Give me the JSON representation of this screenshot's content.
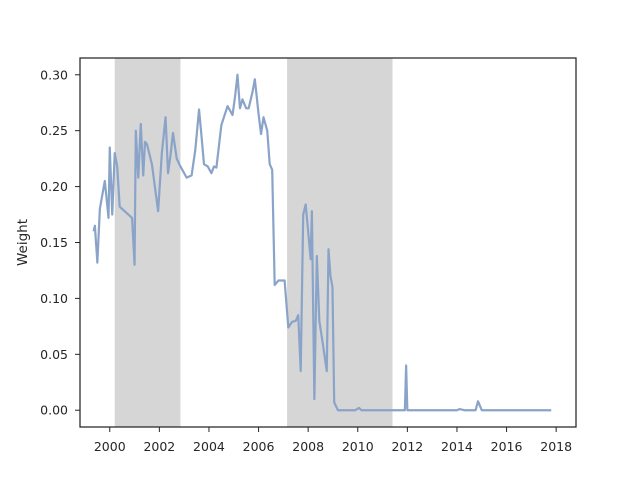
{
  "chart_data": {
    "type": "line",
    "title": "",
    "xlabel": "",
    "ylabel": "Weight",
    "xlim": [
      1998.8,
      2018.8
    ],
    "ylim": [
      -0.015,
      0.315
    ],
    "grid": false,
    "legend": "none",
    "x_ticks": [
      2000,
      2002,
      2004,
      2006,
      2008,
      2010,
      2012,
      2014,
      2016,
      2018
    ],
    "x_tick_labels": [
      "2000",
      "2002",
      "2004",
      "2006",
      "2008",
      "2010",
      "2012",
      "2014",
      "2016",
      "2018"
    ],
    "y_ticks": [
      0.0,
      0.05,
      0.1,
      0.15,
      0.2,
      0.25,
      0.3
    ],
    "y_tick_labels": [
      "0.00",
      "0.05",
      "0.10",
      "0.15",
      "0.20",
      "0.25",
      "0.30"
    ],
    "shaded_regions": [
      {
        "x": [
          2000.2,
          2002.85
        ],
        "color": "#d6d6d6"
      },
      {
        "x": [
          2007.15,
          2011.4
        ],
        "color": "#d6d6d6"
      }
    ],
    "series": [
      {
        "color": "#8aa3c9",
        "x": [
          1999.35,
          1999.4,
          1999.5,
          1999.6,
          1999.8,
          1999.95,
          2000.0,
          2000.1,
          2000.2,
          2000.3,
          2000.4,
          2000.6,
          2000.9,
          2001.0,
          2001.05,
          2001.15,
          2001.25,
          2001.35,
          2001.42,
          2001.5,
          2001.7,
          2001.95,
          2002.1,
          2002.25,
          2002.35,
          2002.45,
          2002.55,
          2002.7,
          2002.85,
          2003.1,
          2003.3,
          2003.45,
          2003.6,
          2003.7,
          2003.8,
          2003.95,
          2004.1,
          2004.2,
          2004.3,
          2004.5,
          2004.75,
          2004.85,
          2004.95,
          2005.05,
          2005.15,
          2005.25,
          2005.35,
          2005.5,
          2005.6,
          2005.75,
          2005.85,
          2006.0,
          2006.1,
          2006.2,
          2006.35,
          2006.45,
          2006.55,
          2006.65,
          2006.8,
          2006.95,
          2007.05,
          2007.2,
          2007.35,
          2007.5,
          2007.6,
          2007.7,
          2007.8,
          2007.9,
          2008.0,
          2008.1,
          2008.15,
          2008.25,
          2008.35,
          2008.45,
          2008.6,
          2008.75,
          2008.82,
          2008.9,
          2008.98,
          2009.05,
          2009.2,
          2009.5,
          2009.9,
          2010.05,
          2010.15,
          2010.5,
          2011.0,
          2011.4,
          2011.8,
          2011.9,
          2011.95,
          2012.0,
          2012.4,
          2012.8,
          2013.2,
          2013.6,
          2013.9,
          2014.0,
          2014.1,
          2014.3,
          2014.6,
          2014.75,
          2014.85,
          2015.0,
          2015.5,
          2016.0,
          2016.5,
          2017.0,
          2017.5,
          2017.8
        ],
        "values": [
          0.16,
          0.165,
          0.132,
          0.18,
          0.205,
          0.172,
          0.235,
          0.175,
          0.23,
          0.218,
          0.182,
          0.178,
          0.172,
          0.13,
          0.25,
          0.208,
          0.256,
          0.21,
          0.24,
          0.238,
          0.22,
          0.178,
          0.23,
          0.262,
          0.212,
          0.228,
          0.248,
          0.225,
          0.218,
          0.208,
          0.21,
          0.233,
          0.269,
          0.245,
          0.22,
          0.218,
          0.212,
          0.218,
          0.217,
          0.255,
          0.272,
          0.268,
          0.264,
          0.28,
          0.3,
          0.27,
          0.278,
          0.27,
          0.27,
          0.284,
          0.296,
          0.265,
          0.247,
          0.262,
          0.25,
          0.22,
          0.215,
          0.112,
          0.116,
          0.116,
          0.116,
          0.074,
          0.079,
          0.08,
          0.085,
          0.035,
          0.175,
          0.184,
          0.16,
          0.135,
          0.178,
          0.01,
          0.138,
          0.08,
          0.058,
          0.035,
          0.144,
          0.12,
          0.11,
          0.007,
          0.0,
          0.0,
          0.0,
          0.002,
          0.0,
          0.0,
          0.0,
          0.0,
          0.0,
          0.0,
          0.04,
          0.0,
          0.0,
          0.0,
          0.0,
          0.0,
          0.0,
          0.0,
          0.001,
          0.0,
          0.0,
          0.0,
          0.008,
          0.0,
          0.0,
          0.0,
          0.0,
          0.0,
          0.0,
          0.0
        ]
      }
    ]
  }
}
